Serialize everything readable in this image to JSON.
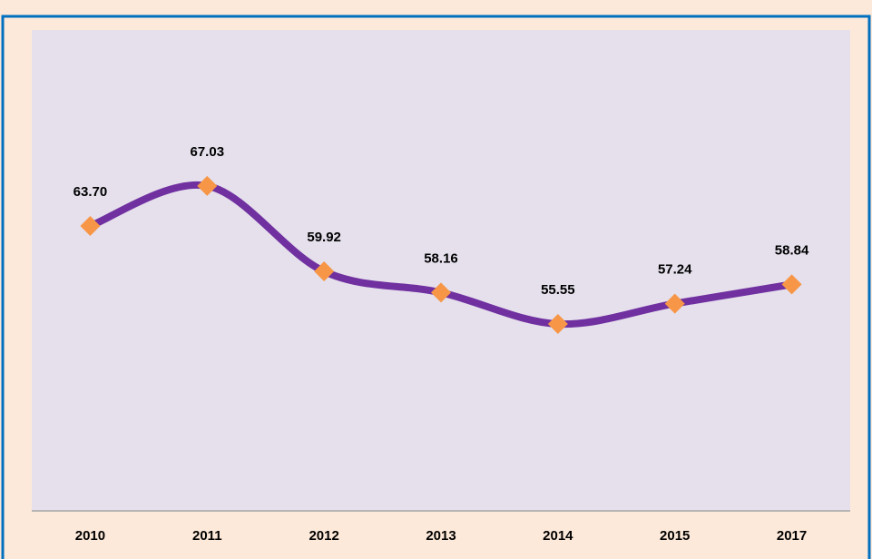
{
  "chart_data": {
    "type": "line",
    "categories": [
      "2010",
      "2011",
      "2012",
      "2013",
      "2014",
      "2015",
      "2017"
    ],
    "values": [
      63.7,
      67.03,
      59.92,
      58.16,
      55.55,
      57.24,
      58.84
    ],
    "value_labels": [
      "63.70",
      "67.03",
      "59.92",
      "58.16",
      "55.55",
      "57.24",
      "58.84"
    ],
    "color": "#7030a0",
    "marker_color": "#f79646",
    "ylim": [
      40,
      80
    ]
  }
}
